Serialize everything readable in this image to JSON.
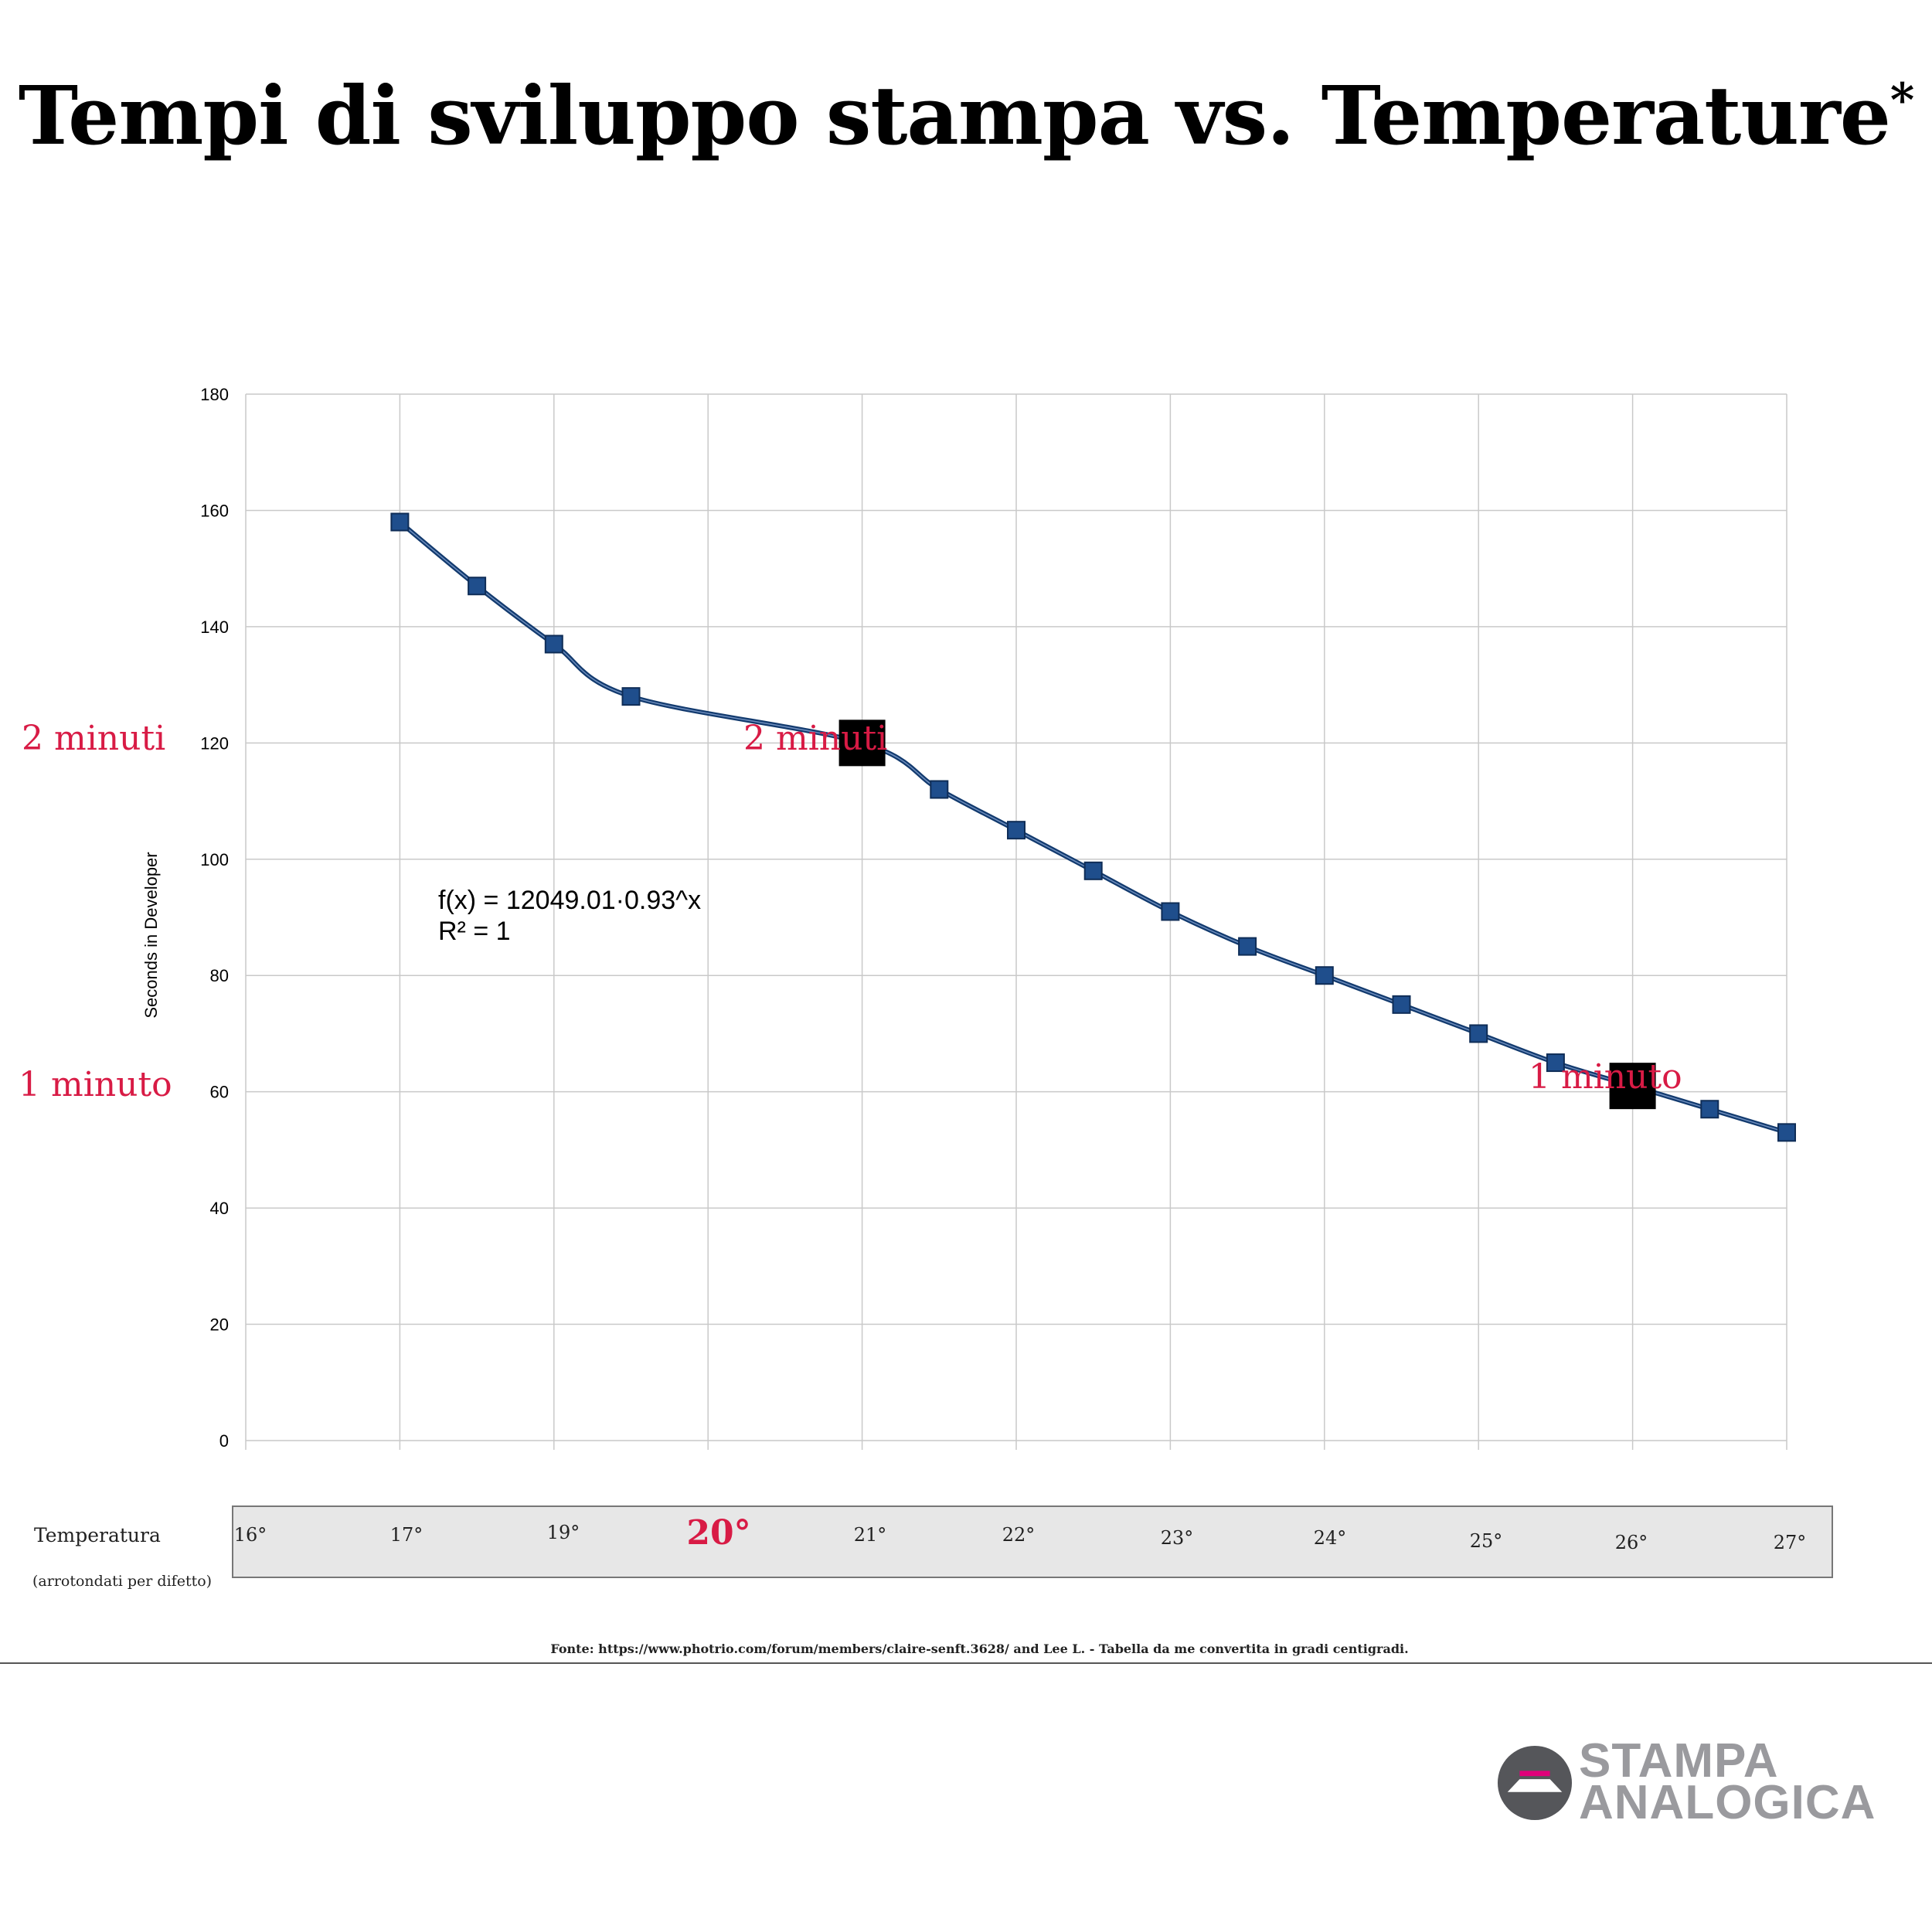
{
  "title": "Tempi di sviluppo stampa vs. Temperature",
  "title_mark": "*",
  "chart_data": {
    "type": "scatter",
    "title": "Tempi di sviluppo stampa vs. Temperature*",
    "ylabel": "Seconds in Developer",
    "xlabel": "Temperatura",
    "ylim": [
      0,
      180
    ],
    "y_ticks": [
      0,
      20,
      40,
      60,
      80,
      100,
      120,
      140,
      160,
      180
    ],
    "xlim": [
      16,
      26
    ],
    "x_category_labels": [
      "16°",
      "17°",
      "19°",
      "20°",
      "21°",
      "22°",
      "23°",
      "24°",
      "25°",
      "26°",
      "27°"
    ],
    "series": [
      {
        "name": "Seconds in Developer",
        "color": "#1f4e8c",
        "x": [
          17,
          17.5,
          18,
          18.5,
          20,
          20.5,
          21,
          21.5,
          22,
          22.5,
          23,
          23.5,
          24,
          24.5,
          25,
          25.5,
          26
        ],
        "y": [
          158,
          147,
          137,
          128,
          120,
          112,
          105,
          98,
          91,
          85,
          80,
          75,
          70,
          65,
          61,
          57,
          53
        ]
      }
    ],
    "trendline": {
      "equation": "f(x) = 12049.01·0.93^x",
      "r2": "R² = 1",
      "a": 12049.01,
      "b": 0.93
    },
    "highlights": [
      {
        "x": 20,
        "y": 120,
        "label": "2 minuti"
      },
      {
        "x": 25,
        "y": 61,
        "label": "1 minuto"
      }
    ]
  },
  "y_markers": {
    "two_minutes": "2 minuti",
    "one_minute": "1 minuto"
  },
  "temperature_row": {
    "label": "Temperatura",
    "sublabel": "(arrotondati per difetto)",
    "ticks": [
      "16°",
      "17°",
      "19°",
      "20°",
      "21°",
      "22°",
      "23°",
      "24°",
      "25°",
      "26°",
      "27°"
    ],
    "highlight": "20°"
  },
  "source": "Fonte: https://www.photrio.com/forum/members/claire-senft.3628/   and Lee L. - Tabella da me convertita in gradi centigradi.",
  "logo": {
    "line1": "STAMPA",
    "line2": "ANALOGICA",
    "accent": "#e0007a"
  },
  "colors": {
    "accent_red": "#d81b45",
    "series_blue": "#1f4e8c"
  }
}
